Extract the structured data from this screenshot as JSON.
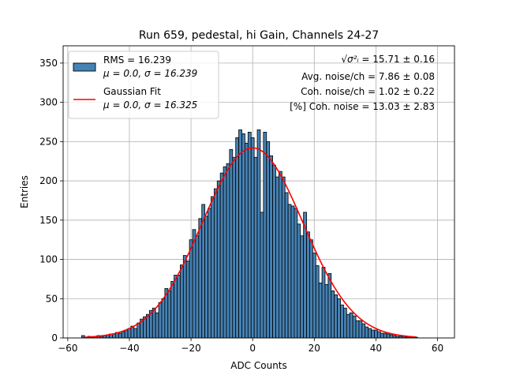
{
  "chart_data": {
    "type": "bar",
    "title": "Run 659, pedestal, hi Gain, Channels 24-27",
    "xlabel": "ADC Counts",
    "ylabel": "Entries",
    "xlim": [
      -61.5,
      65.5
    ],
    "ylim": [
      0,
      372
    ],
    "xticks": [
      -60,
      -40,
      -20,
      0,
      20,
      40,
      60
    ],
    "yticks": [
      0,
      50,
      100,
      150,
      200,
      250,
      300,
      350
    ],
    "grid": true,
    "bin_width": 1,
    "bar_color": "#4682b4",
    "bar_edge_color": "#000000",
    "fit_color": "#ff0000",
    "bins_start": -55,
    "counts": [
      3,
      1,
      2,
      1,
      2,
      3,
      2,
      3,
      4,
      5,
      5,
      7,
      6,
      8,
      10,
      12,
      15,
      12,
      19,
      24,
      27,
      30,
      35,
      38,
      32,
      45,
      50,
      63,
      60,
      72,
      80,
      80,
      93,
      105,
      98,
      125,
      138,
      130,
      152,
      170,
      155,
      165,
      180,
      190,
      200,
      210,
      218,
      222,
      240,
      230,
      255,
      265,
      260,
      248,
      262,
      255,
      230,
      265,
      160,
      262,
      250,
      232,
      220,
      205,
      212,
      205,
      185,
      170,
      168,
      165,
      145,
      130,
      160,
      135,
      125,
      108,
      92,
      70,
      90,
      68,
      82,
      60,
      55,
      50,
      42,
      38,
      30,
      32,
      28,
      22,
      22,
      18,
      14,
      12,
      10,
      10,
      8,
      6,
      6,
      5,
      4,
      3,
      2,
      2,
      2,
      1,
      1,
      1,
      1
    ],
    "fit": {
      "mu": 0.0,
      "sigma": 16.325,
      "amplitude": 242
    },
    "legend": {
      "position": "upper-left",
      "entries": [
        {
          "line1": "RMS = 16.239",
          "line2": "μ = 0.0, σ = 16.239",
          "kind": "patch"
        },
        {
          "line1": "Gaussian Fit",
          "line2": "μ = 0.0, σ = 16.325",
          "kind": "line"
        }
      ]
    },
    "annotations": [
      {
        "prefix": "√σ²ᵢ",
        "text": " = 15.71 ± 0.16"
      },
      {
        "text": "Avg. noise/ch = 7.86 ± 0.08"
      },
      {
        "text": "Coh. noise/ch = 1.02 ± 0.22"
      },
      {
        "text": "[%] Coh. noise = 13.03 ± 2.83"
      }
    ]
  }
}
